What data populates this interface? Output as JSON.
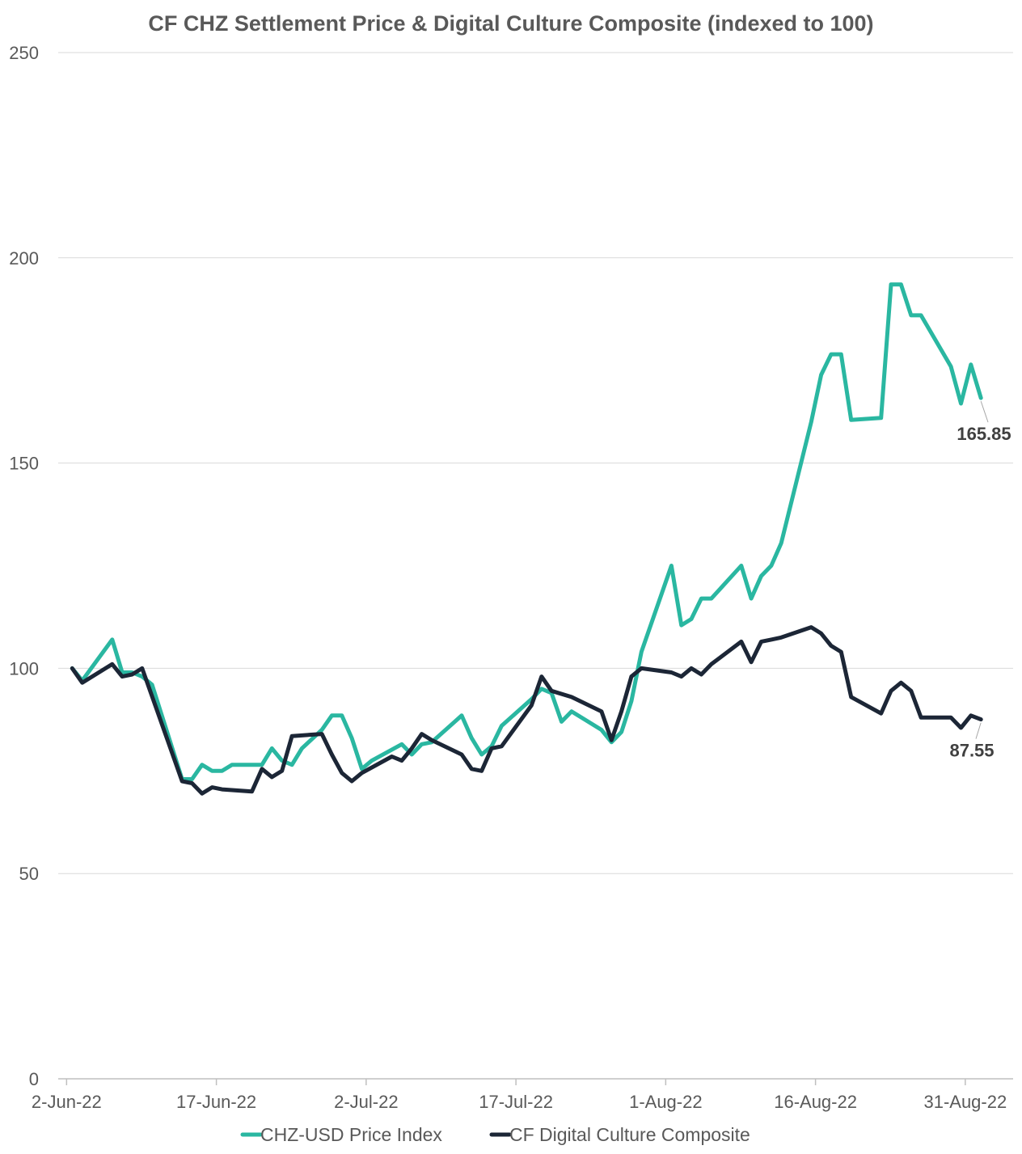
{
  "chart_data": {
    "type": "line",
    "title": "CF CHZ Settlement Price & Digital Culture Composite (indexed to 100)",
    "xlabel": "",
    "ylabel": "",
    "ylim": [
      0,
      250
    ],
    "yticks": [
      "0",
      "50",
      "100",
      "150",
      "200",
      "250"
    ],
    "xticks": [
      "2-Jun-22",
      "17-Jun-22",
      "2-Jul-22",
      "17-Jul-22",
      "1-Aug-22",
      "16-Aug-22",
      "31-Aug-22"
    ],
    "x_range": [
      "2022-06-02",
      "2022-09-02"
    ],
    "grid": "horizontal",
    "legend": "bottom",
    "series": [
      {
        "name": "CHZ-USD Price Index",
        "color": "#2ab7a1",
        "end_label": "165.85",
        "points": [
          [
            "2022-06-02",
            100
          ],
          [
            "2022-06-03",
            97
          ],
          [
            "2022-06-06",
            107
          ],
          [
            "2022-06-07",
            99
          ],
          [
            "2022-06-08",
            99
          ],
          [
            "2022-06-09",
            98
          ],
          [
            "2022-06-10",
            96
          ],
          [
            "2022-06-13",
            73
          ],
          [
            "2022-06-14",
            73
          ],
          [
            "2022-06-15",
            76.5
          ],
          [
            "2022-06-16",
            75
          ],
          [
            "2022-06-17",
            75
          ],
          [
            "2022-06-18",
            76.5
          ],
          [
            "2022-06-20",
            76.5
          ],
          [
            "2022-06-21",
            76.5
          ],
          [
            "2022-06-22",
            80.5
          ],
          [
            "2022-06-23",
            77.5
          ],
          [
            "2022-06-24",
            76.5
          ],
          [
            "2022-06-25",
            80.5
          ],
          [
            "2022-06-27",
            85
          ],
          [
            "2022-06-28",
            88.5
          ],
          [
            "2022-06-29",
            88.5
          ],
          [
            "2022-06-30",
            83
          ],
          [
            "2022-07-01",
            75.5
          ],
          [
            "2022-07-02",
            77.5
          ],
          [
            "2022-07-05",
            81.5
          ],
          [
            "2022-07-06",
            79
          ],
          [
            "2022-07-07",
            81.5
          ],
          [
            "2022-07-08",
            82
          ],
          [
            "2022-07-11",
            88.5
          ],
          [
            "2022-07-12",
            83
          ],
          [
            "2022-07-13",
            79
          ],
          [
            "2022-07-14",
            81
          ],
          [
            "2022-07-15",
            86
          ],
          [
            "2022-07-18",
            92.5
          ],
          [
            "2022-07-19",
            95
          ],
          [
            "2022-07-20",
            94
          ],
          [
            "2022-07-21",
            87
          ],
          [
            "2022-07-22",
            89.5
          ],
          [
            "2022-07-25",
            85
          ],
          [
            "2022-07-26",
            82
          ],
          [
            "2022-07-27",
            84.5
          ],
          [
            "2022-07-28",
            92
          ],
          [
            "2022-07-29",
            104
          ],
          [
            "2022-08-01",
            125
          ],
          [
            "2022-08-02",
            110.5
          ],
          [
            "2022-08-03",
            112
          ],
          [
            "2022-08-04",
            117
          ],
          [
            "2022-08-05",
            117
          ],
          [
            "2022-08-08",
            125
          ],
          [
            "2022-08-09",
            117
          ],
          [
            "2022-08-10",
            122.5
          ],
          [
            "2022-08-11",
            125
          ],
          [
            "2022-08-12",
            130.5
          ],
          [
            "2022-08-15",
            160
          ],
          [
            "2022-08-16",
            171.5
          ],
          [
            "2022-08-17",
            176.5
          ],
          [
            "2022-08-18",
            176.5
          ],
          [
            "2022-08-19",
            160.5
          ],
          [
            "2022-08-22",
            161
          ],
          [
            "2022-08-23",
            193.5
          ],
          [
            "2022-08-24",
            193.5
          ],
          [
            "2022-08-25",
            186
          ],
          [
            "2022-08-26",
            186
          ],
          [
            "2022-08-29",
            173.5
          ],
          [
            "2022-08-30",
            164.5
          ],
          [
            "2022-08-31",
            174
          ],
          [
            "2022-09-01",
            165.85
          ]
        ]
      },
      {
        "name": "CF Digital Culture Composite",
        "color": "#1c2636",
        "end_label": "87.55",
        "points": [
          [
            "2022-06-02",
            100
          ],
          [
            "2022-06-03",
            96.5
          ],
          [
            "2022-06-06",
            101
          ],
          [
            "2022-06-07",
            98
          ],
          [
            "2022-06-08",
            98.5
          ],
          [
            "2022-06-09",
            100
          ],
          [
            "2022-06-13",
            72.5
          ],
          [
            "2022-06-14",
            72
          ],
          [
            "2022-06-15",
            69.5
          ],
          [
            "2022-06-16",
            71
          ],
          [
            "2022-06-17",
            70.5
          ],
          [
            "2022-06-20",
            70
          ],
          [
            "2022-06-21",
            75.5
          ],
          [
            "2022-06-22",
            73.5
          ],
          [
            "2022-06-23",
            75
          ],
          [
            "2022-06-24",
            83.5
          ],
          [
            "2022-06-27",
            84
          ],
          [
            "2022-06-28",
            79
          ],
          [
            "2022-06-29",
            74.5
          ],
          [
            "2022-06-30",
            72.5
          ],
          [
            "2022-07-01",
            74.5
          ],
          [
            "2022-07-04",
            78.5
          ],
          [
            "2022-07-05",
            77.5
          ],
          [
            "2022-07-06",
            80.5
          ],
          [
            "2022-07-07",
            84
          ],
          [
            "2022-07-08",
            82.5
          ],
          [
            "2022-07-11",
            79
          ],
          [
            "2022-07-12",
            75.5
          ],
          [
            "2022-07-13",
            75
          ],
          [
            "2022-07-14",
            80.5
          ],
          [
            "2022-07-15",
            81
          ],
          [
            "2022-07-18",
            91
          ],
          [
            "2022-07-19",
            98
          ],
          [
            "2022-07-20",
            94.5
          ],
          [
            "2022-07-22",
            93
          ],
          [
            "2022-07-25",
            89.5
          ],
          [
            "2022-07-26",
            82.5
          ],
          [
            "2022-07-27",
            89.5
          ],
          [
            "2022-07-28",
            98
          ],
          [
            "2022-07-29",
            100
          ],
          [
            "2022-08-01",
            99
          ],
          [
            "2022-08-02",
            98
          ],
          [
            "2022-08-03",
            100
          ],
          [
            "2022-08-04",
            98.5
          ],
          [
            "2022-08-05",
            101
          ],
          [
            "2022-08-08",
            106.5
          ],
          [
            "2022-08-09",
            101.5
          ],
          [
            "2022-08-10",
            106.5
          ],
          [
            "2022-08-11",
            107
          ],
          [
            "2022-08-12",
            107.5
          ],
          [
            "2022-08-15",
            110
          ],
          [
            "2022-08-16",
            108.5
          ],
          [
            "2022-08-17",
            105.5
          ],
          [
            "2022-08-18",
            104
          ],
          [
            "2022-08-19",
            93
          ],
          [
            "2022-08-22",
            89
          ],
          [
            "2022-08-23",
            94.5
          ],
          [
            "2022-08-24",
            96.5
          ],
          [
            "2022-08-25",
            94.5
          ],
          [
            "2022-08-26",
            88
          ],
          [
            "2022-08-29",
            88
          ],
          [
            "2022-08-30",
            85.5
          ],
          [
            "2022-08-31",
            88.5
          ],
          [
            "2022-09-01",
            87.55
          ]
        ]
      }
    ]
  }
}
